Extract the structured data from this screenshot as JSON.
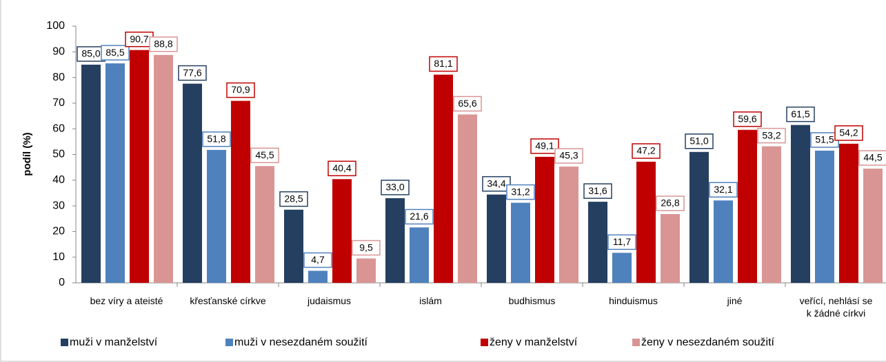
{
  "chart_data": {
    "type": "bar",
    "y_label": "podíl (%)",
    "categories": [
      "bez víry a ateisté",
      "křesťanské církve",
      "judaismus",
      "islám",
      "budhismus",
      "hinduismus",
      "jiné",
      "veřící, nehlásí se\nk žádné církvi"
    ],
    "series": [
      {
        "name": "muži v manželství",
        "color": "#243f60",
        "values": [
          85.0,
          77.6,
          28.5,
          33.0,
          34.4,
          31.6,
          51.0,
          61.5
        ],
        "value_labels": [
          "85,0",
          "77,6",
          "28,5",
          "33,0",
          "34,4",
          "31,6",
          "51,0",
          "61,5"
        ]
      },
      {
        "name": "muži v nesezdaném soužití",
        "color": "#4f81bd",
        "values": [
          85.5,
          51.8,
          4.7,
          21.6,
          31.2,
          11.7,
          32.1,
          51.5
        ],
        "value_labels": [
          "85,5",
          "51,8",
          "4,7",
          "21,6",
          "31,2",
          "11,7",
          "32,1",
          "51,5"
        ]
      },
      {
        "name": "ženy v manželství",
        "color": "#c00000",
        "values": [
          90.7,
          70.9,
          40.4,
          81.1,
          49.1,
          47.2,
          59.6,
          54.2
        ],
        "value_labels": [
          "90,7",
          "70,9",
          "40,4",
          "81,1",
          "49,1",
          "47,2",
          "59,6",
          "54,2"
        ]
      },
      {
        "name": "ženy v nesezdaném soužití",
        "color": "#d99594",
        "values": [
          88.8,
          45.5,
          9.5,
          65.6,
          45.3,
          26.8,
          53.2,
          44.5
        ],
        "value_labels": [
          "88,8",
          "45,5",
          "9,5",
          "65,6",
          "45,3",
          "26,8",
          "53,2",
          "44,5"
        ]
      }
    ],
    "ylim": [
      0,
      100
    ],
    "yticks": [
      0,
      10,
      20,
      30,
      40,
      50,
      60,
      70,
      80,
      90,
      100
    ],
    "grid": false,
    "legend": "bottom"
  }
}
